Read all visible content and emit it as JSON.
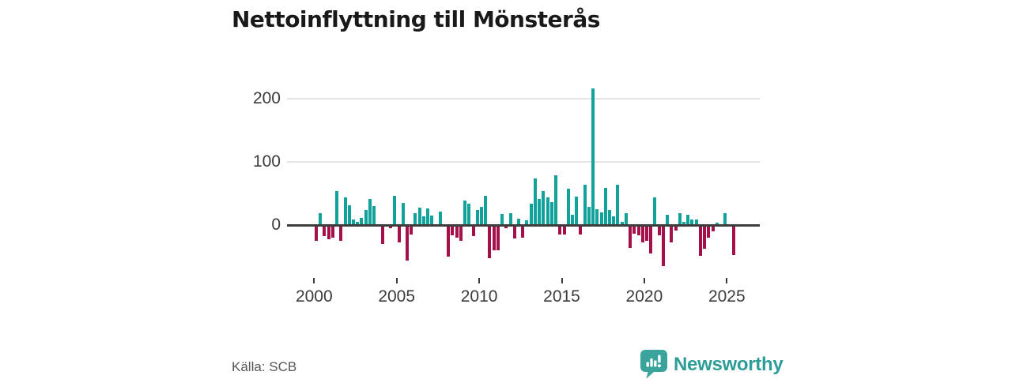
{
  "header": {
    "title": "Nettoinflyttning till Mönsterås"
  },
  "chart_data": {
    "type": "bar",
    "title": "Nettoinflyttning till Mönsterås",
    "frequency": "quarterly",
    "start_period": "2000-Q1",
    "values": [
      -22,
      18,
      -15,
      -20,
      -17,
      53,
      -22,
      43,
      30,
      8,
      4,
      10,
      22,
      40,
      29,
      0,
      -27,
      0,
      -3,
      45,
      -25,
      34,
      -54,
      -13,
      18,
      26,
      13,
      25,
      14,
      0,
      20,
      0,
      -48,
      -14,
      -17,
      -23,
      38,
      32,
      -15,
      22,
      27,
      45,
      -50,
      -38,
      -38,
      16,
      -3,
      17,
      -19,
      9,
      -17,
      6,
      33,
      73,
      40,
      52,
      42,
      35,
      77,
      -13,
      -13,
      56,
      15,
      44,
      -12,
      62,
      27,
      215,
      24,
      19,
      58,
      23,
      12,
      63,
      4,
      17,
      -34,
      -11,
      -14,
      -25,
      -22,
      -42,
      42,
      -14,
      -63,
      15,
      -25,
      -6,
      17,
      4,
      15,
      7,
      8,
      -46,
      -35,
      -17,
      -8,
      3,
      0,
      17,
      0,
      -45
    ],
    "x_ticks": [
      "2000",
      "2005",
      "2010",
      "2015",
      "2020",
      "2025"
    ],
    "y_ticks": [
      "0",
      "100",
      "200"
    ],
    "ylim": [
      -81,
      231
    ],
    "grid": "horizontal",
    "legend": "none",
    "positive_color": "#10a29b",
    "negative_color": "#a4114a"
  },
  "footer": {
    "source": "Källa: SCB",
    "brand": "Newsworthy",
    "brand_color": "#2e9d96"
  },
  "icons": {
    "logo": "newsworthy-speech-bubble-bar-chart-icon"
  }
}
